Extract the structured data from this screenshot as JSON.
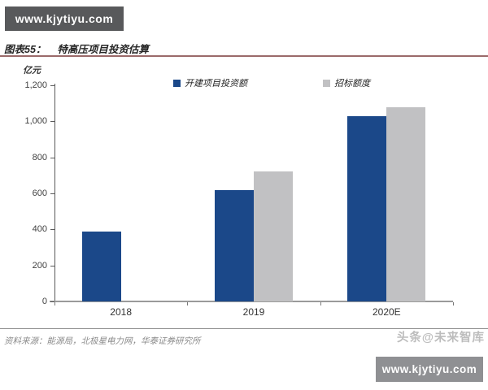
{
  "watermarks": {
    "top_left_box": "www.kjytiyu.com",
    "bottom_right_box": "www.kjytiyu.com",
    "bottom_right_credit": "头条@未来智库"
  },
  "header": {
    "figure_label": "图表55：",
    "figure_title": "特高压项目投资估算"
  },
  "chart_data": {
    "type": "bar",
    "title": "特高压项目投资估算",
    "unit_label": "亿元",
    "categories": [
      "2018",
      "2019",
      "2020E"
    ],
    "series": [
      {
        "name": "开建项目投资额",
        "color": "#1b4889",
        "values": [
          390,
          620,
          1030
        ]
      },
      {
        "name": "招标额度",
        "color": "#c1c1c3",
        "values": [
          0,
          720,
          1080
        ]
      }
    ],
    "ylim": [
      0,
      1200
    ],
    "ytick_step": 200,
    "yticks": [
      "0",
      "200",
      "400",
      "600",
      "800",
      "1,000",
      "1,200"
    ],
    "grid": false,
    "legend_position": "top-center"
  },
  "footer": {
    "source": "资料来源：能源局，北极星电力网，华泰证券研究所"
  },
  "colors": {
    "bar_blue": "#1b4889",
    "bar_gray": "#c1c1c3",
    "box_dark_gray": "#58595b",
    "box_light_gray": "#8f9093",
    "title_divider_maroon": "#9b6a6a",
    "axis_gray": "#9a9a9a",
    "source_text_gray": "#8a8a8a",
    "credit_gray": "#bdbdbd"
  }
}
